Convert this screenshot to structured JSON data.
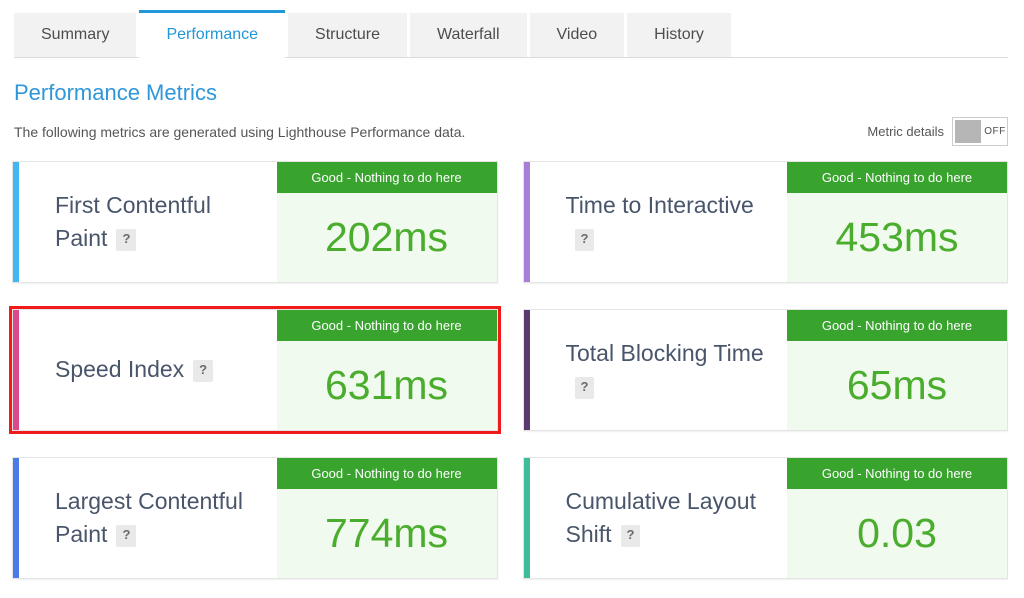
{
  "tabs": [
    {
      "label": "Summary",
      "active": false
    },
    {
      "label": "Performance",
      "active": true
    },
    {
      "label": "Structure",
      "active": false
    },
    {
      "label": "Waterfall",
      "active": false
    },
    {
      "label": "Video",
      "active": false
    },
    {
      "label": "History",
      "active": false
    }
  ],
  "header": {
    "title": "Performance Metrics",
    "subtitle": "The following metrics are generated using Lighthouse Performance data."
  },
  "metric_details": {
    "label": "Metric details",
    "toggle_state": "OFF"
  },
  "cards": [
    {
      "label": "First Contentful Paint",
      "help": "?",
      "badge": "Good - Nothing to do here",
      "value": "202ms",
      "accent_color": "#41b6f0",
      "highlighted": false
    },
    {
      "label": "Time to Interactive",
      "help": "?",
      "badge": "Good - Nothing to do here",
      "value": "453ms",
      "accent_color": "#a87fd6",
      "highlighted": false
    },
    {
      "label": "Speed Index",
      "help": "?",
      "badge": "Good - Nothing to do here",
      "value": "631ms",
      "accent_color": "#d94a8c",
      "highlighted": true
    },
    {
      "label": "Total Blocking Time",
      "help": "?",
      "badge": "Good - Nothing to do here",
      "value": "65ms",
      "accent_color": "#5a3a6e",
      "highlighted": false
    },
    {
      "label": "Largest Contentful Paint",
      "help": "?",
      "badge": "Good - Nothing to do here",
      "value": "774ms",
      "accent_color": "#4a79e8",
      "highlighted": false
    },
    {
      "label": "Cumulative Layout Shift",
      "help": "?",
      "badge": "Good - Nothing to do here",
      "value": "0.03",
      "accent_color": "#3fbd9b",
      "highlighted": false
    }
  ],
  "colors": {
    "tab_active_blue": "#2196d8",
    "heading_blue": "#2e96d9",
    "badge_green": "#38a42e",
    "value_green": "#4aad2d",
    "value_bg_green": "#f1faee",
    "highlight_red": "#f01a1a"
  }
}
